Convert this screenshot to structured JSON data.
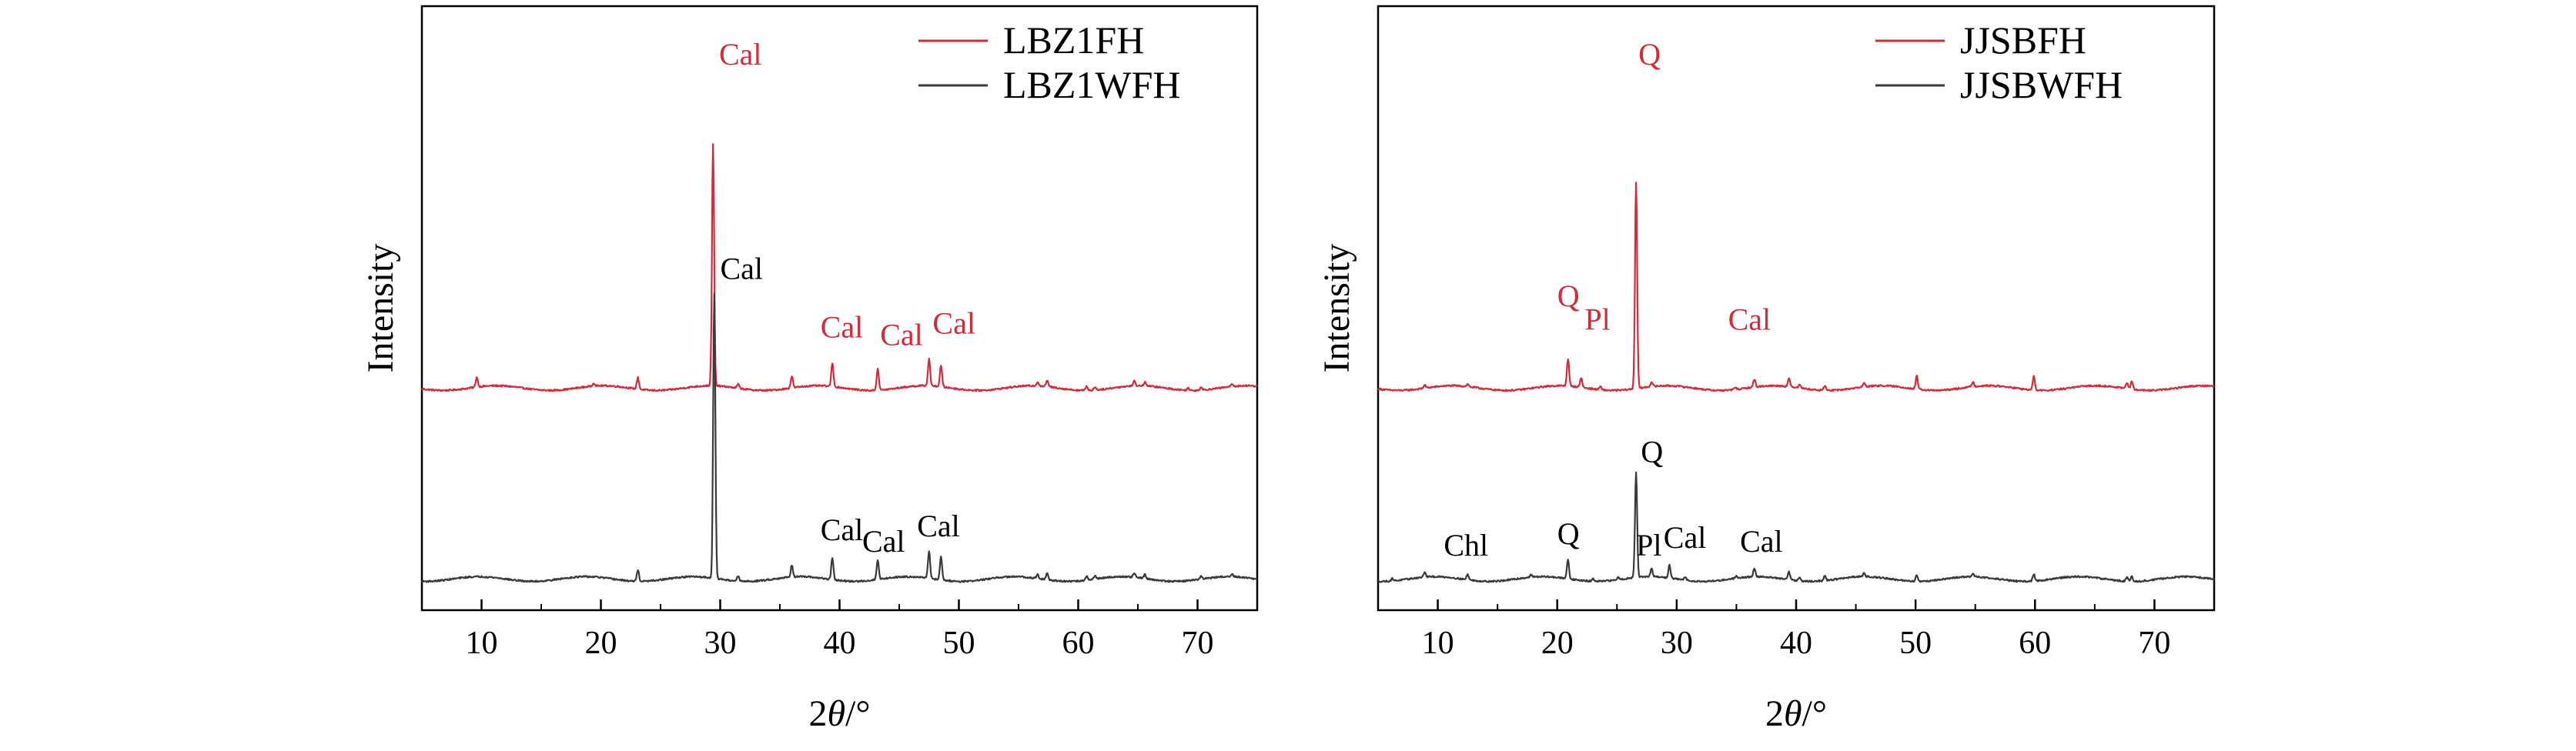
{
  "colors": {
    "red": "#d22b3c",
    "dark": "#3a3a3a",
    "axis": "#000000"
  },
  "chart_data": [
    {
      "type": "line",
      "title": "",
      "xlabel": "2θ/°",
      "ylabel": "Intensity",
      "xlim": [
        5,
        75
      ],
      "xticks": [
        10,
        20,
        30,
        40,
        50,
        60,
        70
      ],
      "y_ticks_shown": false,
      "grid": false,
      "legend_position": "top-right",
      "series": [
        {
          "name": "LBZ1FH",
          "color": "#d22b3c",
          "baseline": 0.47,
          "peaks": [
            [
              9.6,
              0.025
            ],
            [
              19.4,
              0.008
            ],
            [
              23.1,
              0.03
            ],
            [
              29.4,
              0.62
            ],
            [
              31.5,
              0.01
            ],
            [
              36.0,
              0.03
            ],
            [
              39.4,
              0.06
            ],
            [
              43.2,
              0.056
            ],
            [
              47.5,
              0.07
            ],
            [
              48.5,
              0.055
            ],
            [
              56.6,
              0.01
            ],
            [
              57.4,
              0.016
            ],
            [
              60.7,
              0.01
            ],
            [
              61.4,
              0.008
            ],
            [
              64.7,
              0.012
            ],
            [
              65.6,
              0.01
            ],
            [
              69.2,
              0.006
            ],
            [
              70.3,
              0.008
            ],
            [
              72.9,
              0.006
            ]
          ],
          "annotations": [
            {
              "text": "Cal",
              "x": 29.4,
              "dx": 0.5,
              "y": 1.3
            },
            {
              "text": "Cal",
              "x": 39.4,
              "dx": -1.0,
              "y": 0.6
            },
            {
              "text": "Cal",
              "x": 43.2,
              "dx": 0.2,
              "y": 0.58
            },
            {
              "text": "Cal",
              "x": 47.5,
              "dx": 0.3,
              "y": 0.61
            }
          ]
        },
        {
          "name": "LBZ1WFH",
          "color": "#3a3a3a",
          "baseline": -0.02,
          "peaks": [
            [
              23.1,
              0.03
            ],
            [
              29.5,
              0.73
            ],
            [
              31.5,
              0.012
            ],
            [
              36.0,
              0.03
            ],
            [
              39.4,
              0.056
            ],
            [
              43.2,
              0.05
            ],
            [
              47.5,
              0.07
            ],
            [
              48.5,
              0.06
            ],
            [
              56.6,
              0.01
            ],
            [
              57.4,
              0.016
            ],
            [
              60.7,
              0.01
            ],
            [
              61.4,
              0.008
            ],
            [
              64.7,
              0.012
            ],
            [
              65.6,
              0.01
            ],
            [
              70.3,
              0.008
            ],
            [
              72.9,
              0.006
            ]
          ],
          "annotations": [
            {
              "text": "Cal",
              "x": 29.5,
              "dx": 0.5,
              "y": 0.75
            },
            {
              "text": "Cal",
              "x": 39.4,
              "dx": -1.0,
              "y": 0.08
            },
            {
              "text": "Cal",
              "x": 43.2,
              "dx": -1.3,
              "y": 0.05
            },
            {
              "text": "Cal",
              "x": 48.5,
              "dx": -2.0,
              "y": 0.09
            }
          ]
        }
      ]
    },
    {
      "type": "line",
      "title": "",
      "xlabel": "2θ/°",
      "ylabel": "Intensity",
      "xlim": [
        5,
        75
      ],
      "xticks": [
        10,
        20,
        30,
        40,
        50,
        60,
        70
      ],
      "y_ticks_shown": false,
      "grid": false,
      "legend_position": "top-right",
      "series": [
        {
          "name": "JJSBFH",
          "color": "#d22b3c",
          "baseline": 0.47,
          "peaks": [
            [
              8.9,
              0.008
            ],
            [
              12.5,
              0.006
            ],
            [
              20.9,
              0.07
            ],
            [
              22.0,
              0.025
            ],
            [
              23.6,
              0.008
            ],
            [
              26.6,
              0.53
            ],
            [
              27.9,
              0.012
            ],
            [
              34.9,
              0.006
            ],
            [
              36.5,
              0.02
            ],
            [
              39.4,
              0.02
            ],
            [
              40.3,
              0.01
            ],
            [
              42.4,
              0.012
            ],
            [
              45.7,
              0.01
            ],
            [
              50.1,
              0.033
            ],
            [
              54.8,
              0.012
            ],
            [
              59.9,
              0.035
            ],
            [
              67.7,
              0.016
            ],
            [
              68.1,
              0.02
            ]
          ],
          "annotations": [
            {
              "text": "Q",
              "x": 26.6,
              "dx": 0.2,
              "y": 1.3
            },
            {
              "text": "Q",
              "x": 20.9,
              "dx": -0.9,
              "y": 0.68
            },
            {
              "text": "Pl",
              "x": 22.0,
              "dx": 0.3,
              "y": 0.62
            },
            {
              "text": "Cal",
              "x": 36.5,
              "dx": -2.2,
              "y": 0.62
            }
          ]
        },
        {
          "name": "JJSBWFH",
          "color": "#3a3a3a",
          "baseline": -0.02,
          "peaks": [
            [
              6.2,
              0.006
            ],
            [
              8.9,
              0.012
            ],
            [
              12.5,
              0.014
            ],
            [
              17.8,
              0.006
            ],
            [
              20.9,
              0.05
            ],
            [
              23.0,
              0.006
            ],
            [
              25.1,
              0.006
            ],
            [
              26.6,
              0.27
            ],
            [
              27.9,
              0.02
            ],
            [
              29.4,
              0.033
            ],
            [
              30.7,
              0.008
            ],
            [
              35.0,
              0.006
            ],
            [
              36.5,
              0.02
            ],
            [
              39.4,
              0.02
            ],
            [
              40.3,
              0.01
            ],
            [
              42.4,
              0.012
            ],
            [
              45.7,
              0.01
            ],
            [
              50.1,
              0.016
            ],
            [
              54.8,
              0.006
            ],
            [
              59.9,
              0.018
            ],
            [
              67.7,
              0.01
            ],
            [
              68.1,
              0.012
            ]
          ],
          "annotations": [
            {
              "text": "Q",
              "x": 26.6,
              "dx": 0.4,
              "y": 0.28
            },
            {
              "text": "Chl",
              "x": 12.5,
              "dx": -2.0,
              "y": 0.04
            },
            {
              "text": "Q",
              "x": 20.9,
              "dx": -0.9,
              "y": 0.07
            },
            {
              "text": "Pl",
              "x": 27.4,
              "dx": -0.8,
              "y": 0.04
            },
            {
              "text": "Cal",
              "x": 29.4,
              "dx": -0.5,
              "y": 0.06
            },
            {
              "text": "Cal",
              "x": 36.5,
              "dx": -1.2,
              "y": 0.05
            }
          ]
        }
      ]
    }
  ]
}
